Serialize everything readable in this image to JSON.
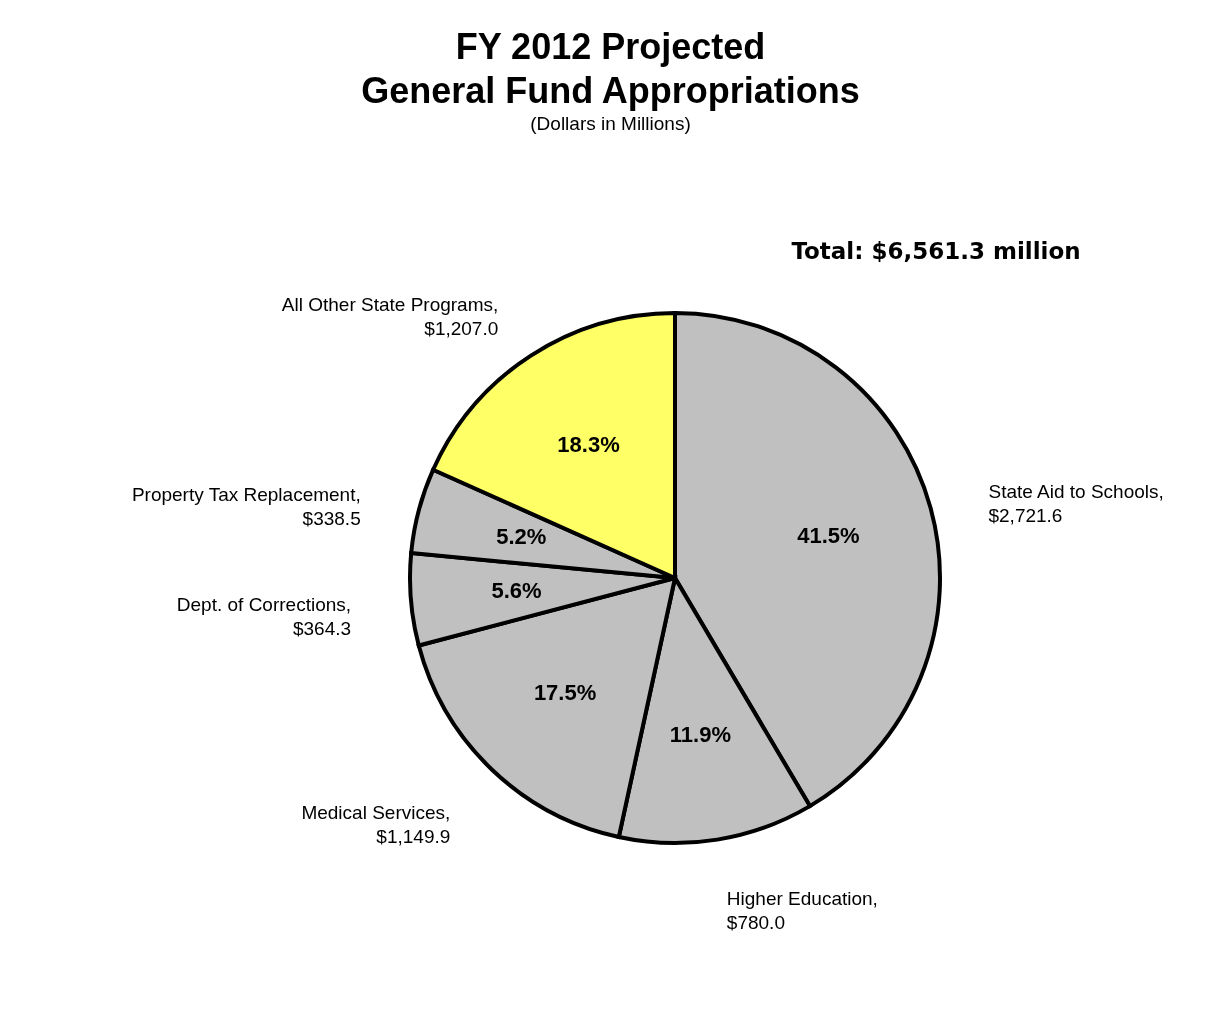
{
  "chart_data": {
    "type": "pie",
    "title": "FY 2012 Projected General Fund Appropriations",
    "subtitle": "(Dollars in Millions)",
    "categories": [
      "State Aid to Schools, $2,721.6",
      "Higher Education, $780.0",
      "Medical Services, $1,149.9",
      "Dept. of Corrections, $364.3",
      "Property Tax Replacement, $338.5",
      "All Other State Programs, $1,207.0"
    ],
    "values": [
      41.5,
      11.9,
      17.5,
      5.6,
      5.2,
      18.3
    ],
    "value_labels": [
      "41.5%",
      "11.9%",
      "17.5%",
      "5.6%",
      "5.2%",
      "18.3%"
    ],
    "colors": [
      "#c0c0c0",
      "#c0c0c0",
      "#c0c0c0",
      "#c0c0c0",
      "#c0c0c0",
      "#ffff66"
    ],
    "annotations": [
      "Total:  $6,561.3 million"
    ]
  }
}
